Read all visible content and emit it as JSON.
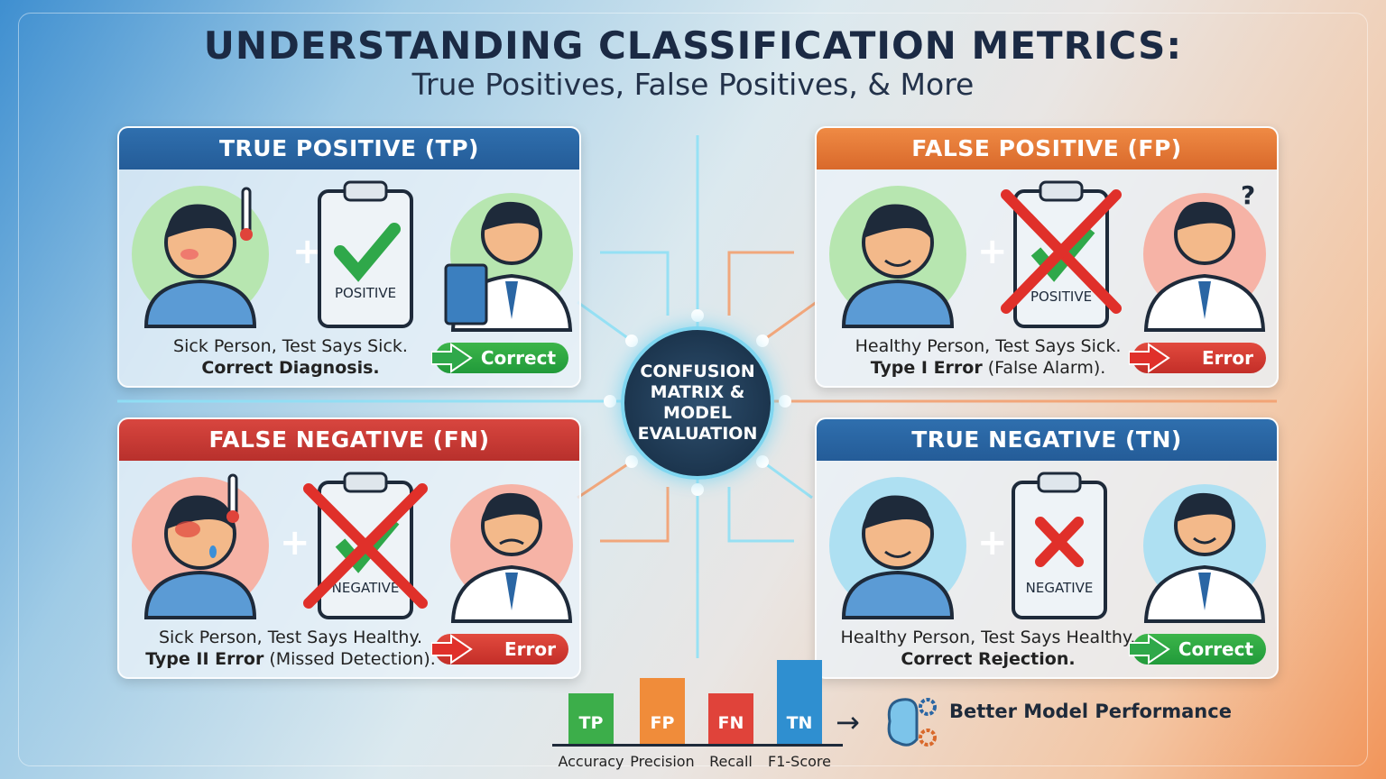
{
  "title": "UNDERSTANDING CLASSIFICATION METRICS:",
  "subtitle": "True Positives, False Positives, & More",
  "center": "CONFUSION MATRIX & MODEL EVALUATION",
  "panels": {
    "tp": {
      "header": "TRUE POSITIVE (TP)",
      "clipboard": "POSITIVE",
      "line1": "Sick Person, Test Says Sick.",
      "bold": "Correct Diagnosis.",
      "rest": "",
      "result": "Correct",
      "color": "#2a66a4"
    },
    "fp": {
      "header": "FALSE POSITIVE (FP)",
      "clipboard": "POSITIVE",
      "line1": "Healthy Person, Test Says Sick.",
      "bold": "Type I Error",
      "rest": " (False Alarm).",
      "result": "Error",
      "color": "#e27b3a"
    },
    "fn": {
      "header": "FALSE NEGATIVE (FN)",
      "clipboard": "NEGATIVE",
      "line1": "Sick Person, Test Says Healthy.",
      "bold": "Type II Error",
      "rest": " (Missed Detection).",
      "result": "Error",
      "color": "#c93a34"
    },
    "tn": {
      "header": "TRUE NEGATIVE (TN)",
      "clipboard": "NEGATIVE",
      "line1": "Healthy Person, Test Says Healthy.",
      "bold": "Correct Rejection.",
      "rest": "",
      "result": "Correct",
      "color": "#2a66a4"
    }
  },
  "metrics": {
    "bars": [
      {
        "code": "TP",
        "label": "Accuracy",
        "relative_height": 0.6,
        "color": "#3cae4a"
      },
      {
        "code": "FP",
        "label": "Precision",
        "relative_height": 0.78,
        "color": "#f08c3a"
      },
      {
        "code": "FN",
        "label": "Recall",
        "relative_height": 0.6,
        "color": "#e0433a"
      },
      {
        "code": "TN",
        "label": "F1-Score",
        "relative_height": 1.0,
        "color": "#2f8fd0"
      }
    ],
    "outcome": "Better Model Performance"
  }
}
